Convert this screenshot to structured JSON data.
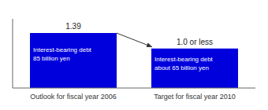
{
  "chart_data": {
    "type": "bar",
    "categories": [
      "Outlook for fiscal year 2006",
      "Target for fiscal year 2010"
    ],
    "values": [
      1.39,
      1.0
    ],
    "value_labels": [
      "1.39",
      "1.0 or less"
    ],
    "data_labels": true,
    "annotations": [
      "Interest-bearing debt\n85 billion yen",
      "Interest-bearing debt\nabout 65 billion yen"
    ],
    "color": "#0000dd",
    "ylim": [
      0,
      1.75
    ],
    "tick_labels": "x",
    "grid": false
  }
}
